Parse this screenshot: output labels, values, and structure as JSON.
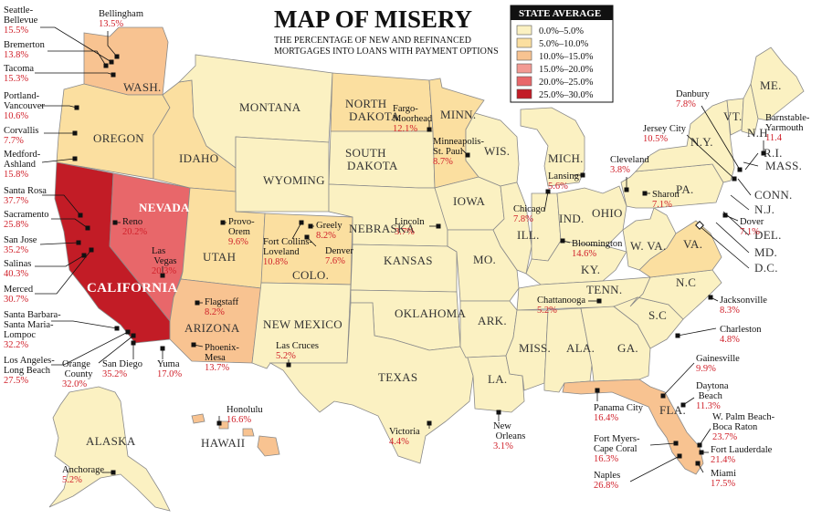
{
  "title": "MAP OF MISERY",
  "subtitle_lines": [
    "THE PERCENTAGE OF NEW AND REFINANCED",
    "MORTGAGES INTO LOANS WITH PAYMENT OPTIONS"
  ],
  "legend": {
    "title": "STATE AVERAGE",
    "items": [
      {
        "label": "0.0%–5.0%",
        "color": "#fbf1c2"
      },
      {
        "label": "5.0%–10.0%",
        "color": "#fbdfa0"
      },
      {
        "label": "10.0%–15.0%",
        "color": "#f8c391"
      },
      {
        "label": "15.0%–20.0%",
        "color": "#f29a93"
      },
      {
        "label": "20.0%–25.0%",
        "color": "#e8676a"
      },
      {
        "label": "25.0%–30.0%",
        "color": "#c21c26"
      }
    ]
  },
  "states": [
    {
      "id": "WASH.",
      "label": "WASH.",
      "color": "#f8c391"
    },
    {
      "id": "OREGON",
      "label": "OREGON",
      "color": "#fbdfa0"
    },
    {
      "id": "CALIFORNIA",
      "label": "CALIFORNIA",
      "color": "#c21c26"
    },
    {
      "id": "NEVADA",
      "label": "NEVADA",
      "color": "#e8676a"
    },
    {
      "id": "IDAHO",
      "label": "IDAHO",
      "color": "#fbdfa0"
    },
    {
      "id": "MONTANA",
      "label": "MONTANA",
      "color": "#fbf1c2"
    },
    {
      "id": "WYOMING",
      "label": "WYOMING",
      "color": "#fbf1c2"
    },
    {
      "id": "UTAH",
      "label": "UTAH",
      "color": "#fbdfa0"
    },
    {
      "id": "ARIZONA",
      "label": "ARIZONA",
      "color": "#f8c391"
    },
    {
      "id": "COLO.",
      "label": "COLO.",
      "color": "#fbdfa0"
    },
    {
      "id": "NEW MEXICO",
      "label": "NEW MEXICO",
      "color": "#fbf1c2"
    },
    {
      "id": "NORTH DAKOTA",
      "label": "NORTH DAKOTA",
      "color": "#fbdfa0"
    },
    {
      "id": "SOUTH DAKOTA",
      "label": "SOUTH DAKOTA",
      "color": "#fbf1c2"
    },
    {
      "id": "NEBRASKA",
      "label": "NEBRASKA",
      "color": "#fbf1c2"
    },
    {
      "id": "KANSAS",
      "label": "KANSAS",
      "color": "#fbf1c2"
    },
    {
      "id": "OKLAHOMA",
      "label": "OKLAHOMA",
      "color": "#fbf1c2"
    },
    {
      "id": "TEXAS",
      "label": "TEXAS",
      "color": "#fbf1c2"
    },
    {
      "id": "MINN.",
      "label": "MINN.",
      "color": "#fbdfa0"
    },
    {
      "id": "IOWA",
      "label": "IOWA",
      "color": "#fbf1c2"
    },
    {
      "id": "MO.",
      "label": "MO.",
      "color": "#fbf1c2"
    },
    {
      "id": "ARK.",
      "label": "ARK.",
      "color": "#fbf1c2"
    },
    {
      "id": "LA.",
      "label": "LA.",
      "color": "#fbf1c2"
    },
    {
      "id": "WIS.",
      "label": "WIS.",
      "color": "#fbf1c2"
    },
    {
      "id": "ILL.",
      "label": "ILL.",
      "color": "#fbf1c2"
    },
    {
      "id": "MICH.",
      "label": "MICH.",
      "color": "#fbf1c2"
    },
    {
      "id": "IND.",
      "label": "IND.",
      "color": "#fbf1c2"
    },
    {
      "id": "OHIO",
      "label": "OHIO",
      "color": "#fbf1c2"
    },
    {
      "id": "KY.",
      "label": "KY.",
      "color": "#fbf1c2"
    },
    {
      "id": "TENN.",
      "label": "TENN.",
      "color": "#fbf1c2"
    },
    {
      "id": "MISS.",
      "label": "MISS.",
      "color": "#fbf1c2"
    },
    {
      "id": "ALA.",
      "label": "ALA.",
      "color": "#fbf1c2"
    },
    {
      "id": "GA.",
      "label": "GA.",
      "color": "#fbf1c2"
    },
    {
      "id": "FLA.",
      "label": "FLA.",
      "color": "#f8c391"
    },
    {
      "id": "S.C",
      "label": "S.C",
      "color": "#fbf1c2"
    },
    {
      "id": "N.C",
      "label": "N.C",
      "color": "#fbf1c2"
    },
    {
      "id": "VA.",
      "label": "VA.",
      "color": "#fbdfa0"
    },
    {
      "id": "W. VA.",
      "label": "W. VA.",
      "color": "#fbf1c2"
    },
    {
      "id": "PA.",
      "label": "PA.",
      "color": "#fbf1c2"
    },
    {
      "id": "N.Y.",
      "label": "N.Y.",
      "color": "#fbf1c2"
    },
    {
      "id": "VT.",
      "label": "VT.",
      "color": "#fbf1c2"
    },
    {
      "id": "N.H",
      "label": "N.H",
      "color": "#fbf1c2"
    },
    {
      "id": "ME.",
      "label": "ME.",
      "color": "#fbf1c2"
    },
    {
      "id": "ALASKA",
      "label": "ALASKA",
      "color": "#fbf1c2"
    },
    {
      "id": "HAWAII",
      "label": "HAWAII",
      "color": "#f8c391"
    }
  ],
  "side_labels": [
    "MASS.",
    "R.I.",
    "CONN.",
    "N.J.",
    "DEL.",
    "MD.",
    "D.C."
  ],
  "cities": [
    {
      "name": "Bellingham",
      "pct": "13.5%"
    },
    {
      "name": "Seattle-Bellevue",
      "pct": "15.5%"
    },
    {
      "name": "Bremerton",
      "pct": "13.8%"
    },
    {
      "name": "Tacoma",
      "pct": "15.3%"
    },
    {
      "name": "Portland-Vancouver",
      "pct": "10.6%"
    },
    {
      "name": "Corvallis",
      "pct": "7.7%"
    },
    {
      "name": "Medford-Ashland",
      "pct": "15.8%"
    },
    {
      "name": "Santa Rosa",
      "pct": "37.7%"
    },
    {
      "name": "Sacramento",
      "pct": "25.8%"
    },
    {
      "name": "San Jose",
      "pct": "35.2%"
    },
    {
      "name": "Salinas",
      "pct": "40.3%"
    },
    {
      "name": "Merced",
      "pct": "30.7%"
    },
    {
      "name": "Santa Barbara-Santa Maria-Lompoc",
      "pct": "32.2%"
    },
    {
      "name": "Los Angeles-Long Beach",
      "pct": "27.5%"
    },
    {
      "name": "Orange County",
      "pct": "32.0%"
    },
    {
      "name": "San Diego",
      "pct": "35.2%"
    },
    {
      "name": "Yuma",
      "pct": "17.0%"
    },
    {
      "name": "Reno",
      "pct": "20.2%"
    },
    {
      "name": "Las Vegas",
      "pct": "20.3%"
    },
    {
      "name": "Provo-Orem",
      "pct": "9.6%"
    },
    {
      "name": "Flagstaff",
      "pct": "8.2%"
    },
    {
      "name": "Phoenix-Mesa",
      "pct": "13.7%"
    },
    {
      "name": "Fort Collins-Loveland",
      "pct": "10.8%"
    },
    {
      "name": "Greely",
      "pct": "8.2%"
    },
    {
      "name": "Denver",
      "pct": "7.6%"
    },
    {
      "name": "Las Cruces",
      "pct": "5.2%"
    },
    {
      "name": "Fargo-Moorhead",
      "pct": "12.1%"
    },
    {
      "name": "Minneapolis-St. Paul",
      "pct": "8.7%"
    },
    {
      "name": "Lincoln",
      "pct": "3.7%"
    },
    {
      "name": "Victoria",
      "pct": "4.4%"
    },
    {
      "name": "New Orleans",
      "pct": "3.1%"
    },
    {
      "name": "Lansing",
      "pct": "5.6%"
    },
    {
      "name": "Chicago",
      "pct": "7.8%"
    },
    {
      "name": "Cleveland",
      "pct": "3.8%"
    },
    {
      "name": "Sharon",
      "pct": "7.1%"
    },
    {
      "name": "Bloomington",
      "pct": "14.6%"
    },
    {
      "name": "Chattanooga",
      "pct": "5.2%"
    },
    {
      "name": "Danbury",
      "pct": "7.8%"
    },
    {
      "name": "Jersey City",
      "pct": "10.5%"
    },
    {
      "name": "Barnstable-Yarmouth",
      "pct": "11.4"
    },
    {
      "name": "Dover",
      "pct": "7.1%"
    },
    {
      "name": "Jacksonville",
      "pct": "8.3%"
    },
    {
      "name": "Charleston",
      "pct": "4.8%"
    },
    {
      "name": "Gainesville",
      "pct": "9.9%"
    },
    {
      "name": "Daytona Beach",
      "pct": "11.3%"
    },
    {
      "name": "W. Palm Beach-Boca Raton",
      "pct": "23.7%"
    },
    {
      "name": "Fort Lauderdale",
      "pct": "21.4%"
    },
    {
      "name": "Miami",
      "pct": "17.5%"
    },
    {
      "name": "Naples",
      "pct": "26.8%"
    },
    {
      "name": "Fort Myers-Cape Coral",
      "pct": "16.3%"
    },
    {
      "name": "Panama City",
      "pct": "16.4%"
    },
    {
      "name": "Honolulu",
      "pct": "16.6%"
    },
    {
      "name": "Anchorage",
      "pct": "5.2%"
    }
  ]
}
